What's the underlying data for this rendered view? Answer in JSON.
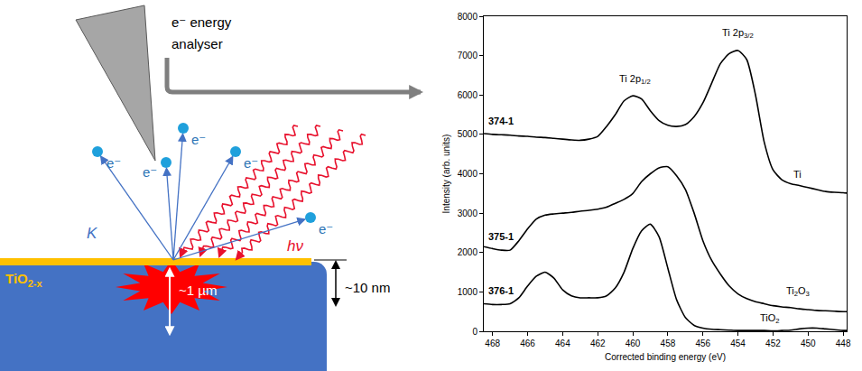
{
  "diagram": {
    "analyser": [
      "e⁻ energy",
      "analyser"
    ],
    "electrons": [
      "e⁻",
      "e⁻",
      "e⁻",
      "e⁻",
      "e⁻"
    ],
    "momentum_label": "K",
    "photon_label": "hν",
    "probe_depth": "~1 µm",
    "xps_depth": "~10 nm",
    "sample": {
      "text": "TiO",
      "sub": "2-x"
    }
  },
  "chart_data": {
    "type": "line",
    "x_label": "Corrected binding energy (eV)",
    "y_label": "Intensity (arb. units)",
    "x": [
      468.5,
      468,
      467.5,
      467,
      466.5,
      466,
      465.5,
      465,
      464.5,
      464,
      463.5,
      463,
      462.5,
      462,
      461.5,
      461,
      460.5,
      460,
      459.5,
      459,
      458.5,
      458,
      457.5,
      457,
      456.5,
      456,
      455.5,
      455,
      454.5,
      454,
      453.5,
      453,
      452.5,
      452,
      451.5,
      451,
      450.5,
      450,
      449.5,
      449,
      448.5,
      448,
      447.8
    ],
    "xlim": [
      468.5,
      447.8
    ],
    "xticks": [
      468,
      466,
      464,
      462,
      460,
      458,
      456,
      454,
      452,
      450,
      448
    ],
    "ylim": [
      0,
      8000
    ],
    "yticks": [
      0,
      1000,
      2000,
      3000,
      4000,
      5000,
      6000,
      7000,
      8000
    ],
    "grid": false,
    "series": [
      {
        "name": "374-1",
        "color": "#000000",
        "values": [
          5020,
          5000,
          4990,
          4980,
          4960,
          4950,
          4930,
          4920,
          4900,
          4880,
          4860,
          4850,
          4880,
          4950,
          5200,
          5500,
          5850,
          5980,
          5900,
          5600,
          5350,
          5230,
          5200,
          5250,
          5450,
          5800,
          6300,
          6800,
          7050,
          7130,
          6900,
          6000,
          4800,
          4100,
          3850,
          3750,
          3700,
          3650,
          3600,
          3550,
          3530,
          3520,
          3510
        ]
      },
      {
        "name": "375-1",
        "color": "#000000",
        "values": [
          2150,
          2100,
          2060,
          2060,
          2300,
          2600,
          2850,
          2950,
          2980,
          3000,
          3020,
          3050,
          3070,
          3100,
          3150,
          3250,
          3350,
          3500,
          3800,
          4000,
          4150,
          4180,
          3950,
          3600,
          3000,
          2300,
          1800,
          1450,
          1150,
          950,
          830,
          750,
          700,
          650,
          620,
          600,
          570,
          550,
          530,
          520,
          510,
          500,
          500
        ]
      },
      {
        "name": "376-1",
        "color": "#000000",
        "values": [
          700,
          680,
          680,
          700,
          850,
          1150,
          1400,
          1500,
          1350,
          1050,
          900,
          850,
          850,
          850,
          900,
          1100,
          1500,
          2100,
          2550,
          2720,
          2400,
          1600,
          800,
          350,
          150,
          80,
          50,
          40,
          30,
          20,
          20,
          20,
          20,
          10,
          20,
          30,
          60,
          80,
          80,
          60,
          40,
          20,
          20
        ]
      }
    ],
    "annotations": [
      {
        "text": "Ti 2p",
        "sub": "1/2",
        "x": 459.9,
        "y": 6400
      },
      {
        "text": "Ti 2p",
        "sub": "3/2",
        "x": 454,
        "y": 7560
      },
      {
        "text": "Ti",
        "x": 450.6,
        "y": 4000
      },
      {
        "text": "Ti",
        "sub": "2",
        "text2": "O",
        "sub2": "3",
        "x": 450.6,
        "y": 1000
      },
      {
        "text": "TiO",
        "sub": "2",
        "x": 452.2,
        "y": 330
      }
    ]
  }
}
